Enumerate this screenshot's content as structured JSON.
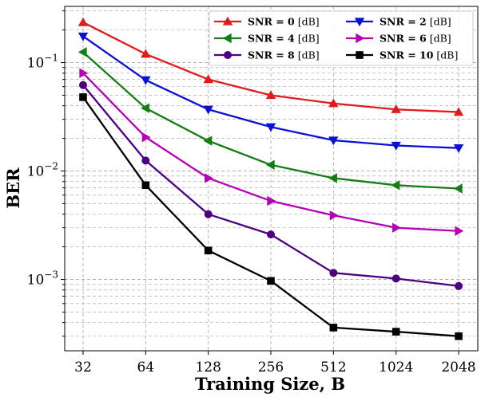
{
  "chart_data": {
    "type": "line",
    "xlabel": "Training Size, B",
    "ylabel": "BER",
    "x_scale": "log2",
    "y_scale": "log10",
    "x": [
      32,
      64,
      128,
      256,
      512,
      1024,
      2048
    ],
    "x_tick_labels": [
      "32",
      "64",
      "128",
      "256",
      "512",
      "1024",
      "2048"
    ],
    "y_tick_labels": [
      {
        "value": 0.1,
        "base": "10",
        "exp": "−1"
      },
      {
        "value": 0.01,
        "base": "10",
        "exp": "−2"
      },
      {
        "value": 0.001,
        "base": "10",
        "exp": "−3"
      }
    ],
    "ylim": [
      0.00022,
      0.33
    ],
    "grid": true,
    "legend_position": "top-right",
    "series": [
      {
        "name_bold": "SNR = 0",
        "name_unit": " [dB]",
        "color": "#e31a1c",
        "marker": "triangle-up",
        "values": [
          0.235,
          0.12,
          0.07,
          0.05,
          0.042,
          0.037,
          0.035
        ]
      },
      {
        "name_bold": "SNR = 2",
        "name_unit": " [dB]",
        "color": "#0a10d6",
        "marker": "triangle-down",
        "values": [
          0.175,
          0.069,
          0.037,
          0.0255,
          0.0192,
          0.0172,
          0.0163
        ]
      },
      {
        "name_bold": "SNR = 4",
        "name_unit": " [dB]",
        "color": "#147d14",
        "marker": "triangle-left",
        "values": [
          0.125,
          0.038,
          0.019,
          0.0114,
          0.0086,
          0.0074,
          0.0069
        ]
      },
      {
        "name_bold": "SNR = 6",
        "name_unit": " [dB]",
        "color": "#b600b6",
        "marker": "triangle-right",
        "values": [
          0.08,
          0.0205,
          0.0086,
          0.0053,
          0.0039,
          0.003,
          0.0028
        ]
      },
      {
        "name_bold": "SNR = 8",
        "name_unit": " [dB]",
        "color": "#4b0082",
        "marker": "circle",
        "values": [
          0.062,
          0.0125,
          0.004,
          0.0026,
          0.00115,
          0.00102,
          0.00087
        ]
      },
      {
        "name_bold": "SNR = 10",
        "name_unit": " [dB]",
        "color": "#000000",
        "marker": "square",
        "values": [
          0.048,
          0.0074,
          0.00185,
          0.00097,
          0.00036,
          0.00033,
          0.0003
        ]
      }
    ]
  }
}
